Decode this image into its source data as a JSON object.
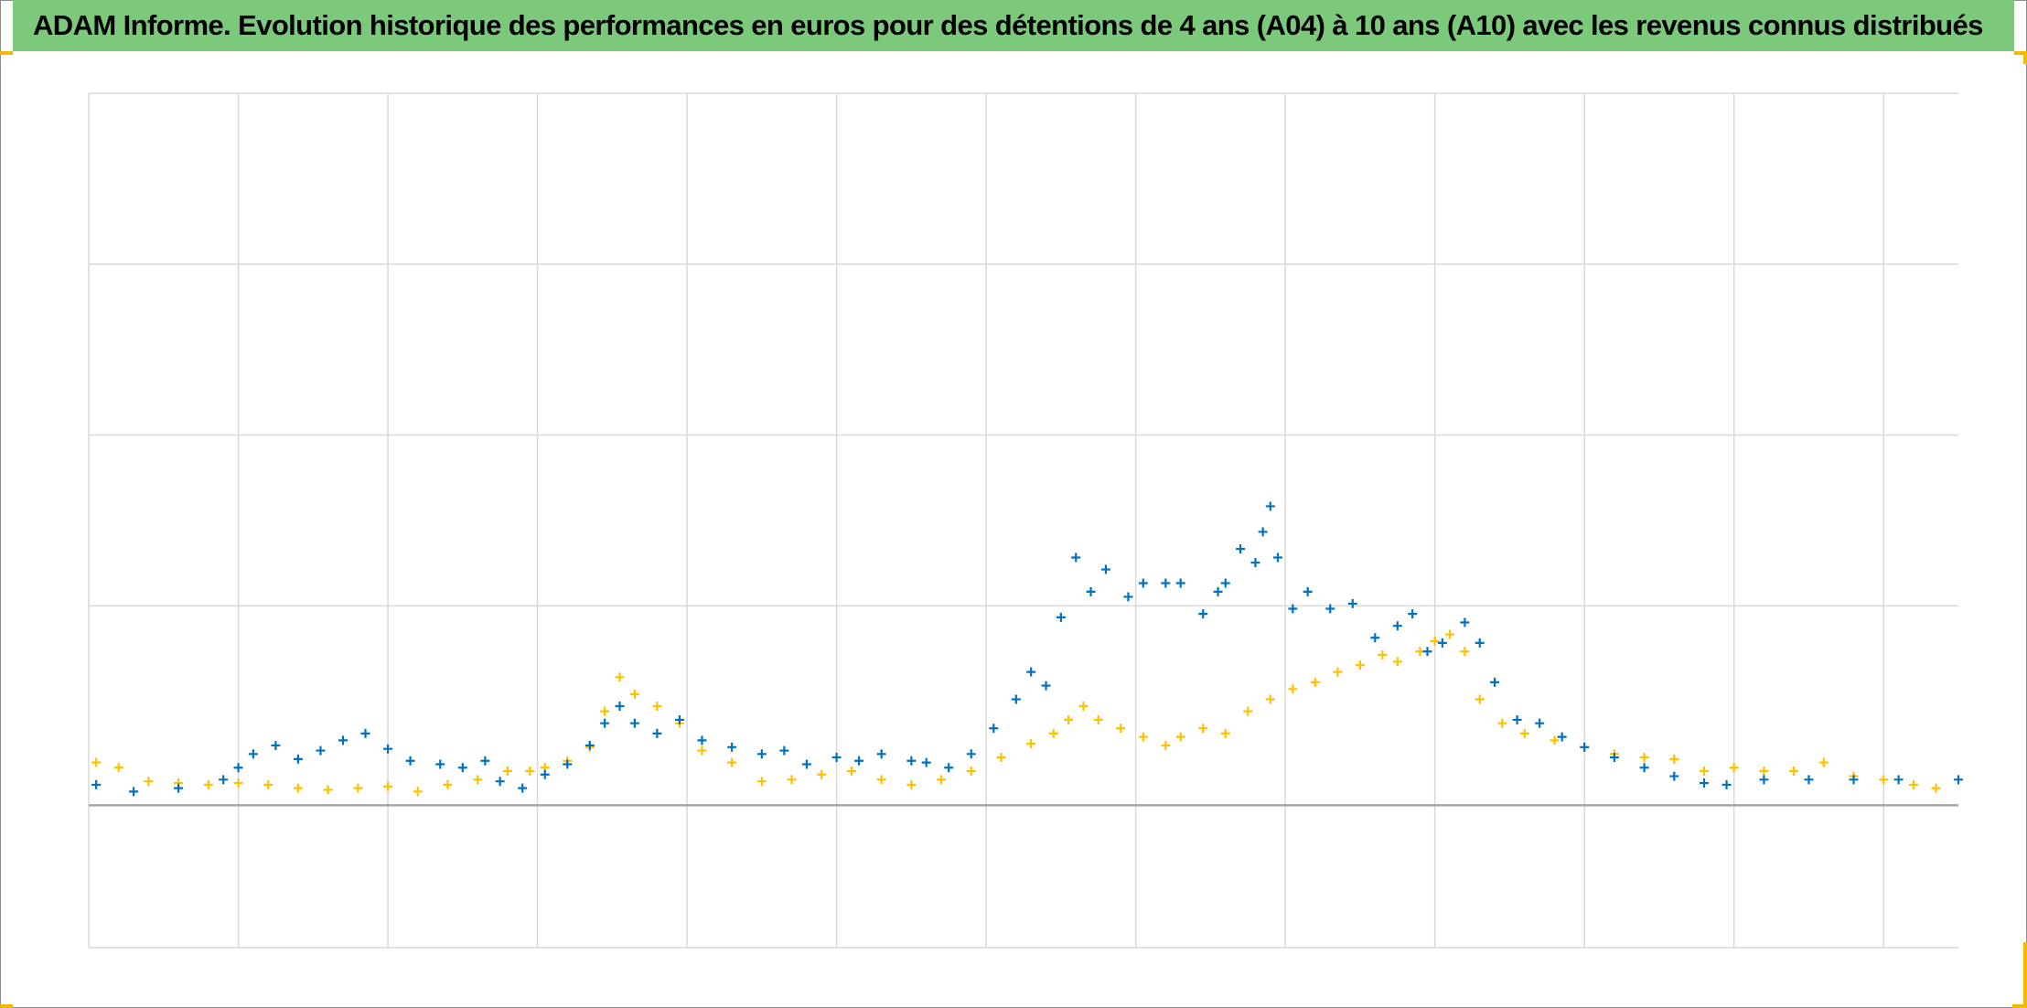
{
  "title": "ADAM Informe. Evolution historique des performances en euros pour des détentions de 4 ans (A04) à 10 ans (A10) avec les revenus connus distribués",
  "colors": {
    "title_bg": "#7cc97c",
    "accent": "#f5b800",
    "series_A04": "#0070c0",
    "series_A10": "#ffc000",
    "grid": "#d9d9d9",
    "axis": "#a6a6a6"
  },
  "chart_data": {
    "type": "scatter",
    "title": "ADAM Informe. Evolution historique des performances en euros pour des détentions de 4 ans (A04) à 10 ans (A10) avec les revenus connus distribués",
    "marker": "plus",
    "xlabel": "",
    "ylabel": "",
    "xlim": [
      0,
      12.5
    ],
    "ylim": [
      -0.8333,
      4.1667
    ],
    "x_gridlines": [
      0,
      1,
      2,
      3,
      4,
      5,
      6,
      7,
      8,
      9,
      10,
      11,
      12
    ],
    "y_gridlines": [
      -0.8333,
      0,
      1.1667,
      2.1667,
      3.1667,
      4.1667
    ],
    "zero_line": 0,
    "grid": true,
    "tick_labels_visible": false,
    "legend": "none",
    "series": [
      {
        "key": "A04",
        "color": "#0070c0",
        "points": [
          [
            0.05,
            0.12
          ],
          [
            0.3,
            0.08
          ],
          [
            0.6,
            0.1
          ],
          [
            0.9,
            0.15
          ],
          [
            1.0,
            0.22
          ],
          [
            1.1,
            0.3
          ],
          [
            1.25,
            0.35
          ],
          [
            1.4,
            0.27
          ],
          [
            1.55,
            0.32
          ],
          [
            1.7,
            0.38
          ],
          [
            1.85,
            0.42
          ],
          [
            2.0,
            0.33
          ],
          [
            2.15,
            0.26
          ],
          [
            2.35,
            0.24
          ],
          [
            2.5,
            0.22
          ],
          [
            2.65,
            0.26
          ],
          [
            2.75,
            0.14
          ],
          [
            2.9,
            0.1
          ],
          [
            3.05,
            0.18
          ],
          [
            3.2,
            0.24
          ],
          [
            3.35,
            0.35
          ],
          [
            3.45,
            0.48
          ],
          [
            3.55,
            0.58
          ],
          [
            3.65,
            0.48
          ],
          [
            3.8,
            0.42
          ],
          [
            3.95,
            0.5
          ],
          [
            4.1,
            0.38
          ],
          [
            4.3,
            0.34
          ],
          [
            4.5,
            0.3
          ],
          [
            4.65,
            0.32
          ],
          [
            4.8,
            0.24
          ],
          [
            5.0,
            0.28
          ],
          [
            5.15,
            0.26
          ],
          [
            5.3,
            0.3
          ],
          [
            5.5,
            0.26
          ],
          [
            5.6,
            0.25
          ],
          [
            5.75,
            0.22
          ],
          [
            5.9,
            0.3
          ],
          [
            6.05,
            0.45
          ],
          [
            6.2,
            0.62
          ],
          [
            6.3,
            0.78
          ],
          [
            6.4,
            0.7
          ],
          [
            6.5,
            1.1
          ],
          [
            6.6,
            1.45
          ],
          [
            6.7,
            1.25
          ],
          [
            6.8,
            1.38
          ],
          [
            6.95,
            1.22
          ],
          [
            7.05,
            1.3
          ],
          [
            7.2,
            1.3
          ],
          [
            7.3,
            1.3
          ],
          [
            7.45,
            1.12
          ],
          [
            7.55,
            1.25
          ],
          [
            7.6,
            1.3
          ],
          [
            7.7,
            1.5
          ],
          [
            7.8,
            1.42
          ],
          [
            7.85,
            1.6
          ],
          [
            7.9,
            1.75
          ],
          [
            7.95,
            1.45
          ],
          [
            8.05,
            1.15
          ],
          [
            8.15,
            1.25
          ],
          [
            8.3,
            1.15
          ],
          [
            8.45,
            1.18
          ],
          [
            8.6,
            0.98
          ],
          [
            8.75,
            1.05
          ],
          [
            8.85,
            1.12
          ],
          [
            8.95,
            0.9
          ],
          [
            9.05,
            0.95
          ],
          [
            9.2,
            1.07
          ],
          [
            9.3,
            0.95
          ],
          [
            9.4,
            0.72
          ],
          [
            9.55,
            0.5
          ],
          [
            9.7,
            0.48
          ],
          [
            9.85,
            0.4
          ],
          [
            10.0,
            0.34
          ],
          [
            10.2,
            0.28
          ],
          [
            10.4,
            0.22
          ],
          [
            10.6,
            0.17
          ],
          [
            10.8,
            0.13
          ],
          [
            10.95,
            0.12
          ],
          [
            11.2,
            0.15
          ],
          [
            11.5,
            0.15
          ],
          [
            11.8,
            0.15
          ],
          [
            12.1,
            0.15
          ],
          [
            12.5,
            0.15
          ]
        ]
      },
      {
        "key": "A10",
        "color": "#ffc000",
        "points": [
          [
            0.05,
            0.25
          ],
          [
            0.2,
            0.22
          ],
          [
            0.4,
            0.14
          ],
          [
            0.6,
            0.13
          ],
          [
            0.8,
            0.12
          ],
          [
            1.0,
            0.13
          ],
          [
            1.2,
            0.12
          ],
          [
            1.4,
            0.1
          ],
          [
            1.6,
            0.09
          ],
          [
            1.8,
            0.1
          ],
          [
            2.0,
            0.11
          ],
          [
            2.2,
            0.08
          ],
          [
            2.4,
            0.12
          ],
          [
            2.6,
            0.15
          ],
          [
            2.8,
            0.2
          ],
          [
            2.95,
            0.2
          ],
          [
            3.05,
            0.22
          ],
          [
            3.2,
            0.26
          ],
          [
            3.35,
            0.34
          ],
          [
            3.45,
            0.55
          ],
          [
            3.55,
            0.75
          ],
          [
            3.65,
            0.65
          ],
          [
            3.8,
            0.58
          ],
          [
            3.95,
            0.48
          ],
          [
            4.1,
            0.32
          ],
          [
            4.3,
            0.25
          ],
          [
            4.5,
            0.14
          ],
          [
            4.7,
            0.15
          ],
          [
            4.9,
            0.18
          ],
          [
            5.1,
            0.2
          ],
          [
            5.3,
            0.15
          ],
          [
            5.5,
            0.12
          ],
          [
            5.7,
            0.15
          ],
          [
            5.9,
            0.2
          ],
          [
            6.1,
            0.28
          ],
          [
            6.3,
            0.36
          ],
          [
            6.45,
            0.42
          ],
          [
            6.55,
            0.5
          ],
          [
            6.65,
            0.58
          ],
          [
            6.75,
            0.5
          ],
          [
            6.9,
            0.45
          ],
          [
            7.05,
            0.4
          ],
          [
            7.2,
            0.35
          ],
          [
            7.3,
            0.4
          ],
          [
            7.45,
            0.45
          ],
          [
            7.6,
            0.42
          ],
          [
            7.75,
            0.55
          ],
          [
            7.9,
            0.62
          ],
          [
            8.05,
            0.68
          ],
          [
            8.2,
            0.72
          ],
          [
            8.35,
            0.78
          ],
          [
            8.5,
            0.82
          ],
          [
            8.65,
            0.88
          ],
          [
            8.75,
            0.84
          ],
          [
            8.9,
            0.9
          ],
          [
            9.0,
            0.96
          ],
          [
            9.1,
            1.0
          ],
          [
            9.2,
            0.9
          ],
          [
            9.3,
            0.62
          ],
          [
            9.45,
            0.48
          ],
          [
            9.6,
            0.42
          ],
          [
            9.8,
            0.38
          ],
          [
            10.0,
            0.34
          ],
          [
            10.2,
            0.3
          ],
          [
            10.4,
            0.28
          ],
          [
            10.6,
            0.27
          ],
          [
            10.8,
            0.2
          ],
          [
            11.0,
            0.22
          ],
          [
            11.2,
            0.2
          ],
          [
            11.4,
            0.2
          ],
          [
            11.6,
            0.25
          ],
          [
            11.8,
            0.17
          ],
          [
            12.0,
            0.15
          ],
          [
            12.2,
            0.12
          ],
          [
            12.35,
            0.1
          ]
        ]
      }
    ]
  }
}
